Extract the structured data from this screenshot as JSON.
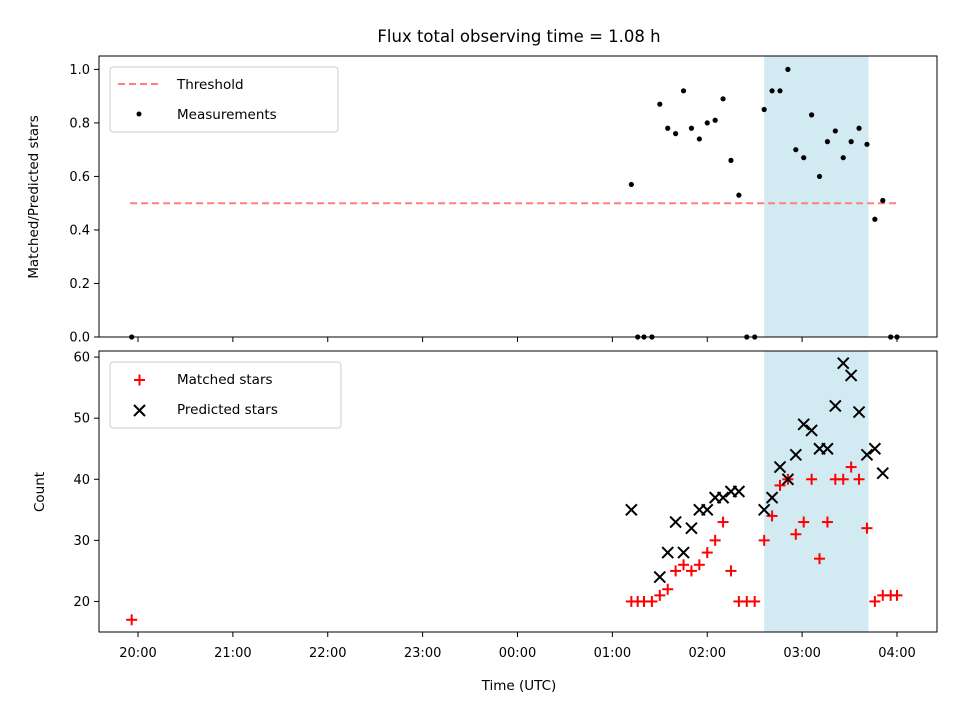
{
  "chart_data": [
    {
      "type": "scatter",
      "title": "Flux total observing time = 1.08 h",
      "xlabel": "",
      "ylabel": "Matched/Predicted stars",
      "ylim": [
        0.0,
        1.05
      ],
      "yticks": [
        "0.0",
        "0.2",
        "0.4",
        "0.6",
        "0.8",
        "1.0"
      ],
      "highlight_span": {
        "x_start": "02:36",
        "x_end": "03:42",
        "color": "#add8e6"
      },
      "legend": {
        "location": "upper-left",
        "entries": [
          "Threshold",
          "Measurements"
        ]
      },
      "threshold": {
        "name": "Threshold",
        "value": 0.5,
        "x_start": "19:55",
        "x_end": "04:00",
        "color": "#ff7f7f",
        "style": "dashed"
      },
      "series": [
        {
          "name": "Measurements",
          "marker": "dot",
          "color": "#000000",
          "points": [
            [
              "19:56",
              0.0
            ],
            [
              "01:12",
              0.57
            ],
            [
              "01:16",
              0.0
            ],
            [
              "01:20",
              0.0
            ],
            [
              "01:25",
              0.0
            ],
            [
              "01:30",
              0.87
            ],
            [
              "01:35",
              0.78
            ],
            [
              "01:40",
              0.76
            ],
            [
              "01:45",
              0.92
            ],
            [
              "01:50",
              0.78
            ],
            [
              "01:55",
              0.74
            ],
            [
              "02:00",
              0.8
            ],
            [
              "02:05",
              0.81
            ],
            [
              "02:10",
              0.89
            ],
            [
              "02:15",
              0.66
            ],
            [
              "02:20",
              0.53
            ],
            [
              "02:25",
              0.0
            ],
            [
              "02:30",
              0.0
            ],
            [
              "02:36",
              0.85
            ],
            [
              "02:41",
              0.92
            ],
            [
              "02:46",
              0.92
            ],
            [
              "02:51",
              1.0
            ],
            [
              "02:56",
              0.7
            ],
            [
              "03:01",
              0.67
            ],
            [
              "03:06",
              0.83
            ],
            [
              "03:11",
              0.6
            ],
            [
              "03:16",
              0.73
            ],
            [
              "03:21",
              0.77
            ],
            [
              "03:26",
              0.67
            ],
            [
              "03:31",
              0.73
            ],
            [
              "03:36",
              0.78
            ],
            [
              "03:41",
              0.72
            ],
            [
              "03:46",
              0.44
            ],
            [
              "03:51",
              0.51
            ],
            [
              "03:56",
              0.0
            ],
            [
              "04:00",
              0.0
            ]
          ]
        }
      ]
    },
    {
      "type": "scatter",
      "title": "",
      "xlabel": "Time (UTC)",
      "ylabel": "Count",
      "ylim": [
        15,
        61
      ],
      "yticks": [
        "20",
        "30",
        "40",
        "50",
        "60"
      ],
      "xticks": [
        "20:00",
        "21:00",
        "22:00",
        "23:00",
        "00:00",
        "01:00",
        "02:00",
        "03:00",
        "04:00"
      ],
      "highlight_span": {
        "x_start": "02:36",
        "x_end": "03:42",
        "color": "#add8e6"
      },
      "legend": {
        "location": "upper-left",
        "entries": [
          "Matched stars",
          "Predicted stars"
        ]
      },
      "series": [
        {
          "name": "Matched stars",
          "marker": "plus",
          "color": "#ff0000",
          "points": [
            [
              "19:56",
              17
            ],
            [
              "01:12",
              20
            ],
            [
              "01:16",
              20
            ],
            [
              "01:20",
              20
            ],
            [
              "01:25",
              20
            ],
            [
              "01:30",
              21
            ],
            [
              "01:35",
              22
            ],
            [
              "01:40",
              25
            ],
            [
              "01:45",
              26
            ],
            [
              "01:50",
              25
            ],
            [
              "01:55",
              26
            ],
            [
              "02:00",
              28
            ],
            [
              "02:05",
              30
            ],
            [
              "02:10",
              33
            ],
            [
              "02:15",
              25
            ],
            [
              "02:20",
              20
            ],
            [
              "02:25",
              20
            ],
            [
              "02:30",
              20
            ],
            [
              "02:36",
              30
            ],
            [
              "02:41",
              34
            ],
            [
              "02:46",
              39
            ],
            [
              "02:51",
              40
            ],
            [
              "02:56",
              31
            ],
            [
              "03:01",
              33
            ],
            [
              "03:06",
              40
            ],
            [
              "03:11",
              27
            ],
            [
              "03:16",
              33
            ],
            [
              "03:21",
              40
            ],
            [
              "03:26",
              40
            ],
            [
              "03:31",
              42
            ],
            [
              "03:36",
              40
            ],
            [
              "03:41",
              32
            ],
            [
              "03:46",
              20
            ],
            [
              "03:51",
              21
            ],
            [
              "03:56",
              21
            ],
            [
              "04:00",
              21
            ]
          ]
        },
        {
          "name": "Predicted stars",
          "marker": "x",
          "color": "#000000",
          "points": [
            [
              "01:12",
              35
            ],
            [
              "01:30",
              24
            ],
            [
              "01:35",
              28
            ],
            [
              "01:40",
              33
            ],
            [
              "01:45",
              28
            ],
            [
              "01:50",
              32
            ],
            [
              "01:55",
              35
            ],
            [
              "02:00",
              35
            ],
            [
              "02:05",
              37
            ],
            [
              "02:10",
              37
            ],
            [
              "02:15",
              38
            ],
            [
              "02:20",
              38
            ],
            [
              "02:36",
              35
            ],
            [
              "02:41",
              37
            ],
            [
              "02:46",
              42
            ],
            [
              "02:51",
              40
            ],
            [
              "02:56",
              44
            ],
            [
              "03:01",
              49
            ],
            [
              "03:06",
              48
            ],
            [
              "03:11",
              45
            ],
            [
              "03:16",
              45
            ],
            [
              "03:21",
              52
            ],
            [
              "03:26",
              59
            ],
            [
              "03:31",
              57
            ],
            [
              "03:36",
              51
            ],
            [
              "03:41",
              44
            ],
            [
              "03:46",
              45
            ],
            [
              "03:51",
              41
            ]
          ]
        }
      ]
    }
  ]
}
